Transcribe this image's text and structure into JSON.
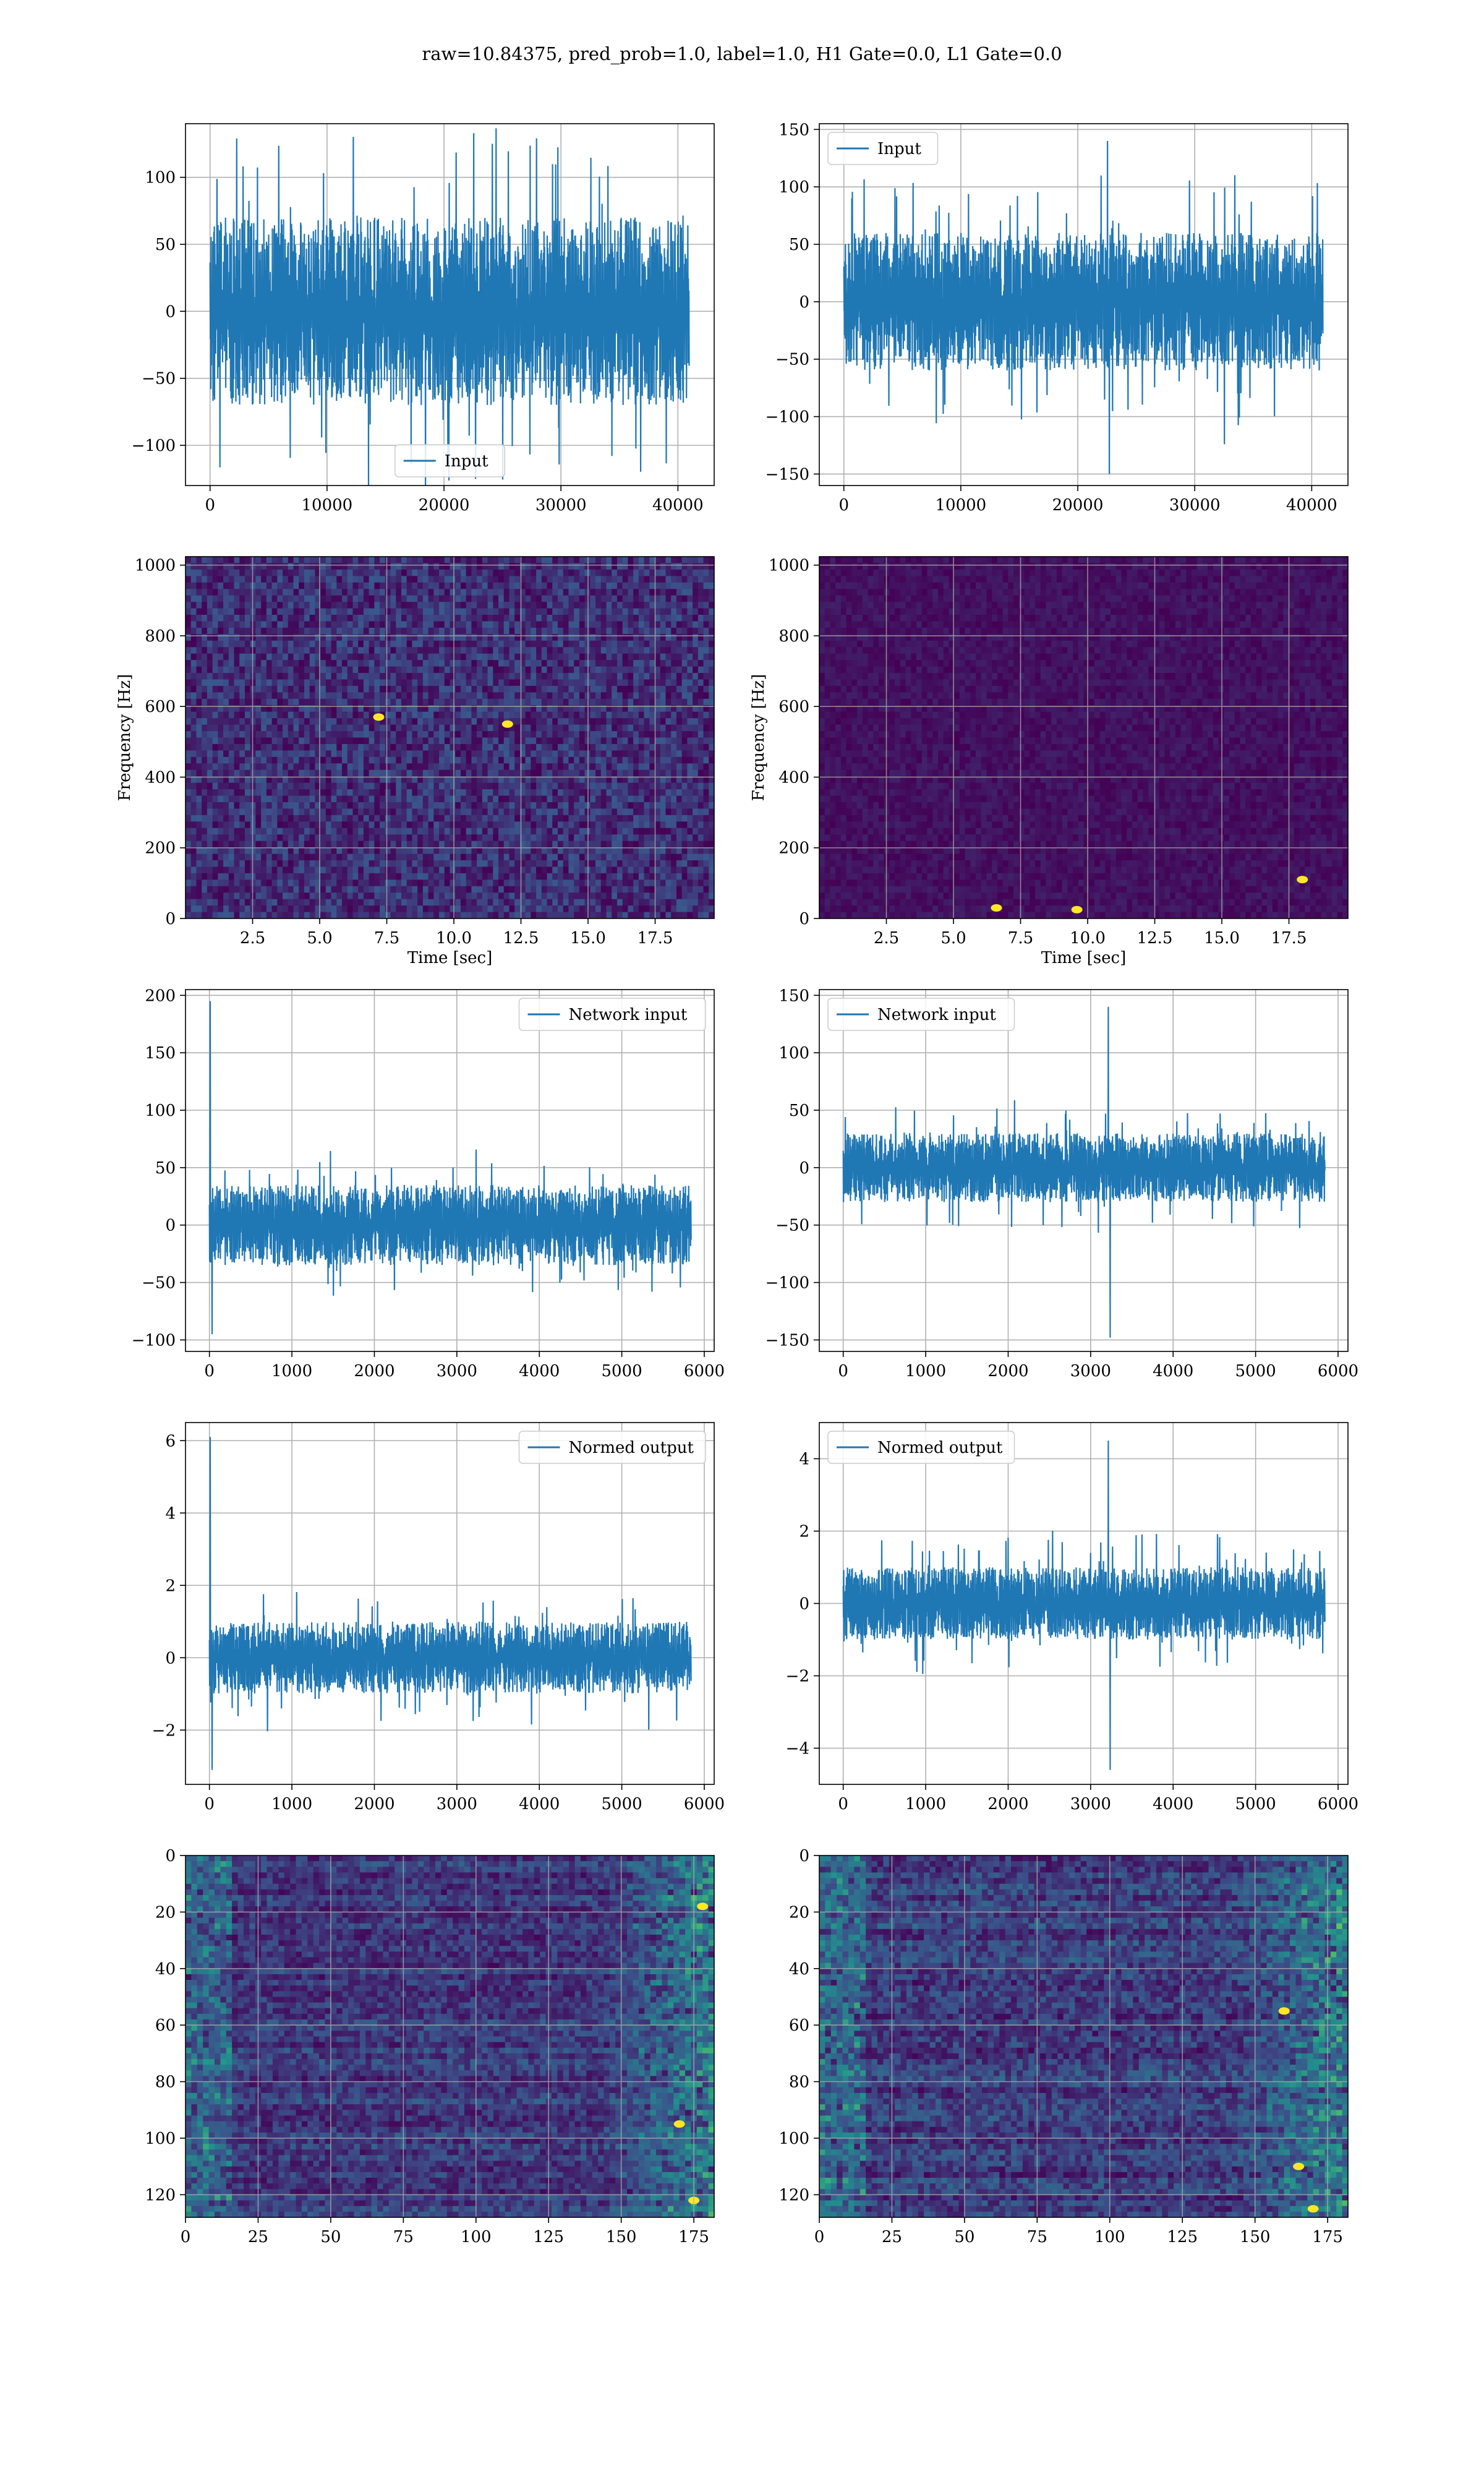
{
  "figure": {
    "suptitle": "raw=10.84375, pred_prob=1.0, label=1.0, H1 Gate=0.0, L1 Gate=0.0",
    "line_color": "#1f77b4",
    "grid_color": "#b0b0b0"
  },
  "chart_data": [
    {
      "id": "h1-input",
      "type": "line",
      "row": 0,
      "col": 0,
      "legend": "Input",
      "legend_loc": "lower-center",
      "xlabel": "",
      "ylabel": "",
      "xlim": [
        -2100,
        43100
      ],
      "ylim": [
        -130,
        140
      ],
      "xticks": [
        0,
        10000,
        20000,
        30000,
        40000
      ],
      "yticks": [
        -100,
        -50,
        0,
        50,
        100
      ],
      "signal": {
        "n": 40960,
        "core": 70,
        "peak": 133,
        "trough": -125,
        "seed": 11
      }
    },
    {
      "id": "l1-input",
      "type": "line",
      "row": 0,
      "col": 1,
      "legend": "Input",
      "legend_loc": "upper-left",
      "xlabel": "",
      "ylabel": "",
      "xlim": [
        -2100,
        43100
      ],
      "ylim": [
        -160,
        155
      ],
      "xticks": [
        0,
        10000,
        20000,
        30000,
        40000
      ],
      "yticks": [
        -150,
        -100,
        -50,
        0,
        50,
        100,
        150
      ],
      "signal": {
        "n": 40960,
        "core": 60,
        "peak": 140,
        "trough": -150,
        "seed": 23
      }
    },
    {
      "id": "h1-spectrogram",
      "type": "heatmap",
      "row": 1,
      "col": 0,
      "xlabel": "Time [sec]",
      "ylabel": "Frequency [Hz]",
      "xlim": [
        0,
        19.7
      ],
      "ylim": [
        0,
        1024
      ],
      "xticks": [
        2.5,
        5.0,
        7.5,
        10.0,
        12.5,
        15.0,
        17.5
      ],
      "yticks": [
        0,
        200,
        400,
        600,
        800,
        1000
      ],
      "colormap": [
        "#440154",
        "#3b528b",
        "#21918c",
        "#5ec962",
        "#fde725"
      ],
      "hotspots": [
        {
          "t": 12.0,
          "f": 550
        },
        {
          "t": 7.2,
          "f": 570
        }
      ],
      "texture": {
        "level": 0.28,
        "seed": 5
      }
    },
    {
      "id": "l1-spectrogram",
      "type": "heatmap",
      "row": 1,
      "col": 1,
      "xlabel": "Time [sec]",
      "ylabel": "Frequency [Hz]",
      "xlim": [
        0,
        19.7
      ],
      "ylim": [
        0,
        1024
      ],
      "xticks": [
        2.5,
        5.0,
        7.5,
        10.0,
        12.5,
        15.0,
        17.5
      ],
      "yticks": [
        0,
        200,
        400,
        600,
        800,
        1000
      ],
      "colormap": [
        "#440154",
        "#3b528b",
        "#21918c",
        "#5ec962",
        "#fde725"
      ],
      "hotspots": [
        {
          "t": 6.6,
          "f": 30
        },
        {
          "t": 9.6,
          "f": 25
        },
        {
          "t": 18.0,
          "f": 110
        }
      ],
      "texture": {
        "level": 0.1,
        "seed": 9
      }
    },
    {
      "id": "h1-network-input",
      "type": "line",
      "row": 2,
      "col": 0,
      "legend": "Network input",
      "legend_loc": "upper-right",
      "xlabel": "",
      "ylabel": "",
      "xlim": [
        -290,
        6120
      ],
      "ylim": [
        -110,
        205
      ],
      "xticks": [
        0,
        1000,
        2000,
        3000,
        4000,
        5000,
        6000
      ],
      "yticks": [
        -100,
        -50,
        0,
        50,
        100,
        150,
        200
      ],
      "signal": {
        "n": 5840,
        "core": 35,
        "peak": 195,
        "trough": -95,
        "seed": 31
      }
    },
    {
      "id": "l1-network-input",
      "type": "line",
      "row": 2,
      "col": 1,
      "legend": "Network input",
      "legend_loc": "upper-left",
      "xlabel": "",
      "ylabel": "",
      "xlim": [
        -290,
        6120
      ],
      "ylim": [
        -160,
        155
      ],
      "xticks": [
        0,
        1000,
        2000,
        3000,
        4000,
        5000,
        6000
      ],
      "yticks": [
        -150,
        -100,
        -50,
        0,
        50,
        100,
        150
      ],
      "signal": {
        "n": 5840,
        "core": 30,
        "peak": 140,
        "trough": -148,
        "seed": 47
      }
    },
    {
      "id": "h1-normed-output",
      "type": "line",
      "row": 3,
      "col": 0,
      "legend": "Normed output",
      "legend_loc": "upper-right",
      "xlabel": "",
      "ylabel": "",
      "xlim": [
        -290,
        6120
      ],
      "ylim": [
        -3.5,
        6.5
      ],
      "xticks": [
        0,
        1000,
        2000,
        3000,
        4000,
        5000,
        6000
      ],
      "yticks": [
        -2,
        0,
        2,
        4,
        6
      ],
      "signal": {
        "n": 5840,
        "core": 1.0,
        "peak": 6.1,
        "trough": -3.1,
        "seed": 53
      }
    },
    {
      "id": "l1-normed-output",
      "type": "line",
      "row": 3,
      "col": 1,
      "legend": "Normed output",
      "legend_loc": "upper-left",
      "xlabel": "",
      "ylabel": "",
      "xlim": [
        -290,
        6120
      ],
      "ylim": [
        -5.0,
        5.0
      ],
      "xticks": [
        0,
        1000,
        2000,
        3000,
        4000,
        5000,
        6000
      ],
      "yticks": [
        -4,
        -2,
        0,
        2,
        4
      ],
      "signal": {
        "n": 5840,
        "core": 1.0,
        "peak": 4.5,
        "trough": -4.6,
        "seed": 67
      }
    },
    {
      "id": "h1-feature-map",
      "type": "heatmap",
      "row": 4,
      "col": 0,
      "xlabel": "",
      "ylabel": "",
      "xlim": [
        0,
        182
      ],
      "ylim": [
        128,
        0
      ],
      "xticks": [
        0,
        25,
        50,
        75,
        100,
        125,
        150,
        175
      ],
      "yticks": [
        0,
        20,
        40,
        60,
        80,
        100,
        120
      ],
      "colormap": [
        "#440154",
        "#3b528b",
        "#21918c",
        "#5ec962",
        "#fde725"
      ],
      "hotspots": [
        {
          "x": 178,
          "y": 18
        },
        {
          "x": 175,
          "y": 122
        },
        {
          "x": 170,
          "y": 95
        }
      ],
      "texture": {
        "level": 0.22,
        "seed": 71
      }
    },
    {
      "id": "l1-feature-map",
      "type": "heatmap",
      "row": 4,
      "col": 1,
      "xlabel": "",
      "ylabel": "",
      "xlim": [
        0,
        182
      ],
      "ylim": [
        128,
        0
      ],
      "xticks": [
        0,
        25,
        50,
        75,
        100,
        125,
        150,
        175
      ],
      "yticks": [
        0,
        20,
        40,
        60,
        80,
        100,
        120
      ],
      "colormap": [
        "#440154",
        "#3b528b",
        "#21918c",
        "#5ec962",
        "#fde725"
      ],
      "hotspots": [
        {
          "x": 165,
          "y": 110
        },
        {
          "x": 160,
          "y": 55
        },
        {
          "x": 170,
          "y": 125
        }
      ],
      "texture": {
        "level": 0.25,
        "seed": 83
      }
    }
  ]
}
